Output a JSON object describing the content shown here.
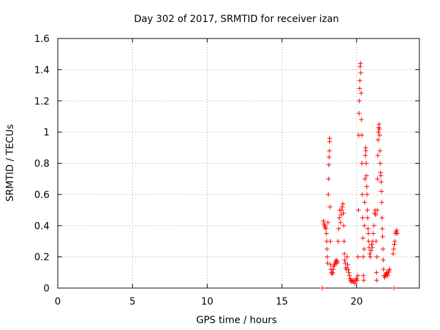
{
  "chart_data": {
    "type": "scatter",
    "title": "Day 302 of 2017, SRMTID for receiver izan",
    "xlabel": "GPS time / hours",
    "ylabel": "SRMTID / TECUs",
    "xlim": [
      0,
      24.2
    ],
    "ylim": [
      0,
      1.6
    ],
    "x_ticks": [
      0,
      5,
      10,
      15,
      20
    ],
    "x_tick_labels": [
      "0",
      "5",
      "10",
      "15",
      "20"
    ],
    "y_ticks": [
      0,
      0.2,
      0.4,
      0.6,
      0.8,
      1.0,
      1.2,
      1.4,
      1.6
    ],
    "y_tick_labels": [
      "0",
      "0.2",
      "0.4",
      "0.6",
      "0.8",
      "1",
      "1.2",
      "1.4",
      "1.6"
    ],
    "grid": true,
    "marker": "+",
    "color": "#ff0000",
    "series": [
      {
        "name": "SRMTID",
        "points": [
          [
            17.7,
            0.0
          ],
          [
            22.5,
            0.0
          ],
          [
            17.78,
            0.43
          ],
          [
            17.82,
            0.41
          ],
          [
            17.86,
            0.4
          ],
          [
            17.9,
            0.39
          ],
          [
            17.94,
            0.38
          ],
          [
            17.98,
            0.35
          ],
          [
            18.0,
            0.3
          ],
          [
            18.02,
            0.25
          ],
          [
            18.04,
            0.2
          ],
          [
            18.06,
            0.16
          ],
          [
            18.08,
            0.42
          ],
          [
            18.1,
            0.6
          ],
          [
            18.12,
            0.7
          ],
          [
            18.14,
            0.79
          ],
          [
            18.16,
            0.84
          ],
          [
            18.18,
            0.88
          ],
          [
            18.19,
            0.94
          ],
          [
            18.2,
            0.96
          ],
          [
            18.22,
            0.52
          ],
          [
            18.24,
            0.3
          ],
          [
            18.26,
            0.15
          ],
          [
            18.28,
            0.12
          ],
          [
            18.32,
            0.1
          ],
          [
            18.36,
            0.09
          ],
          [
            18.4,
            0.1
          ],
          [
            18.44,
            0.12
          ],
          [
            18.48,
            0.14
          ],
          [
            18.52,
            0.15
          ],
          [
            18.56,
            0.16
          ],
          [
            18.6,
            0.17
          ],
          [
            18.64,
            0.18
          ],
          [
            18.68,
            0.16
          ],
          [
            18.72,
            0.17
          ],
          [
            18.76,
            0.3
          ],
          [
            18.8,
            0.38
          ],
          [
            18.84,
            0.45
          ],
          [
            18.88,
            0.5
          ],
          [
            18.92,
            0.42
          ],
          [
            18.96,
            0.47
          ],
          [
            19.0,
            0.5
          ],
          [
            19.04,
            0.52
          ],
          [
            19.08,
            0.54
          ],
          [
            19.12,
            0.48
          ],
          [
            19.14,
            0.4
          ],
          [
            19.16,
            0.3
          ],
          [
            19.18,
            0.22
          ],
          [
            19.2,
            0.18
          ],
          [
            19.24,
            0.16
          ],
          [
            19.28,
            0.13
          ],
          [
            19.32,
            0.12
          ],
          [
            19.36,
            0.2
          ],
          [
            19.4,
            0.15
          ],
          [
            19.44,
            0.12
          ],
          [
            19.48,
            0.1
          ],
          [
            19.52,
            0.08
          ],
          [
            19.56,
            0.06
          ],
          [
            19.6,
            0.05
          ],
          [
            19.64,
            0.04
          ],
          [
            19.7,
            0.05
          ],
          [
            19.76,
            0.04
          ],
          [
            19.82,
            0.05
          ],
          [
            19.88,
            0.03
          ],
          [
            19.94,
            0.05
          ],
          [
            20.0,
            0.06
          ],
          [
            20.04,
            0.05
          ],
          [
            20.08,
            0.08
          ],
          [
            20.1,
            0.2
          ],
          [
            20.12,
            0.5
          ],
          [
            20.14,
            0.98
          ],
          [
            20.16,
            1.12
          ],
          [
            20.18,
            1.2
          ],
          [
            20.2,
            1.28
          ],
          [
            20.22,
            1.33
          ],
          [
            20.24,
            1.42
          ],
          [
            20.26,
            1.44
          ],
          [
            20.28,
            1.38
          ],
          [
            20.3,
            1.25
          ],
          [
            20.32,
            1.08
          ],
          [
            20.34,
            0.98
          ],
          [
            20.36,
            0.8
          ],
          [
            20.38,
            0.6
          ],
          [
            20.4,
            0.45
          ],
          [
            20.42,
            0.32
          ],
          [
            20.44,
            0.2
          ],
          [
            20.46,
            0.08
          ],
          [
            20.48,
            0.05
          ],
          [
            20.5,
            0.25
          ],
          [
            20.52,
            0.4
          ],
          [
            20.54,
            0.55
          ],
          [
            20.56,
            0.7
          ],
          [
            20.58,
            0.85
          ],
          [
            20.6,
            0.9
          ],
          [
            20.62,
            0.88
          ],
          [
            20.64,
            0.8
          ],
          [
            20.66,
            0.72
          ],
          [
            20.68,
            0.65
          ],
          [
            20.7,
            0.6
          ],
          [
            20.72,
            0.5
          ],
          [
            20.74,
            0.45
          ],
          [
            20.76,
            0.38
          ],
          [
            20.78,
            0.35
          ],
          [
            20.8,
            0.3
          ],
          [
            20.84,
            0.26
          ],
          [
            20.88,
            0.22
          ],
          [
            20.92,
            0.2
          ],
          [
            20.96,
            0.24
          ],
          [
            21.0,
            0.28
          ],
          [
            21.04,
            0.26
          ],
          [
            21.08,
            0.3
          ],
          [
            21.12,
            0.35
          ],
          [
            21.16,
            0.4
          ],
          [
            21.2,
            0.48
          ],
          [
            21.24,
            0.5
          ],
          [
            21.28,
            0.47
          ],
          [
            21.3,
            0.3
          ],
          [
            21.32,
            0.1
          ],
          [
            21.34,
            0.05
          ],
          [
            21.36,
            0.2
          ],
          [
            21.38,
            0.5
          ],
          [
            21.4,
            0.7
          ],
          [
            21.42,
            0.85
          ],
          [
            21.44,
            0.95
          ],
          [
            21.46,
            1.0
          ],
          [
            21.48,
            1.03
          ],
          [
            21.5,
            1.05
          ],
          [
            21.52,
            1.02
          ],
          [
            21.54,
            0.98
          ],
          [
            21.56,
            0.88
          ],
          [
            21.58,
            0.8
          ],
          [
            21.6,
            0.74
          ],
          [
            21.62,
            0.72
          ],
          [
            21.64,
            0.68
          ],
          [
            21.66,
            0.62
          ],
          [
            21.68,
            0.55
          ],
          [
            21.7,
            0.45
          ],
          [
            21.72,
            0.38
          ],
          [
            21.74,
            0.33
          ],
          [
            21.76,
            0.25
          ],
          [
            21.78,
            0.18
          ],
          [
            21.8,
            0.12
          ],
          [
            21.84,
            0.08
          ],
          [
            21.88,
            0.07
          ],
          [
            21.92,
            0.08
          ],
          [
            21.96,
            0.09
          ],
          [
            22.0,
            0.1
          ],
          [
            22.04,
            0.09
          ],
          [
            22.08,
            0.08
          ],
          [
            22.12,
            0.1
          ],
          [
            22.16,
            0.11
          ],
          [
            22.2,
            0.12
          ],
          [
            22.44,
            0.22
          ],
          [
            22.48,
            0.25
          ],
          [
            22.52,
            0.28
          ],
          [
            22.56,
            0.3
          ],
          [
            22.6,
            0.35
          ],
          [
            22.64,
            0.36
          ],
          [
            22.68,
            0.37
          ],
          [
            22.72,
            0.35
          ]
        ]
      }
    ]
  }
}
